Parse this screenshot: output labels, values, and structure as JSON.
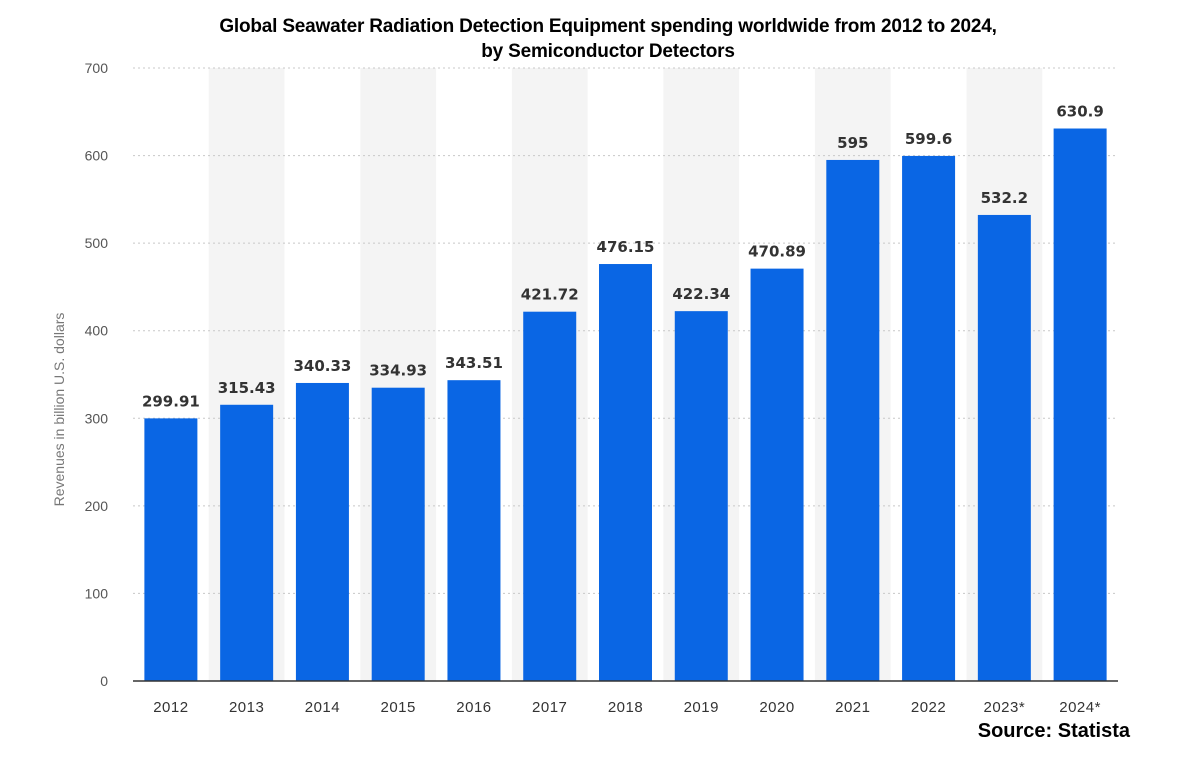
{
  "chart_data": {
    "type": "bar",
    "title_line1": "Global Seawater Radiation Detection Equipment spending worldwide from 2012 to 2024,",
    "title_line2": "by Semiconductor Detectors",
    "categories": [
      "2012",
      "2013",
      "2014",
      "2015",
      "2016",
      "2017",
      "2018",
      "2019",
      "2020",
      "2021",
      "2022",
      "2023*",
      "2024*"
    ],
    "values": [
      299.91,
      315.43,
      340.33,
      334.93,
      343.51,
      421.72,
      476.15,
      422.34,
      470.89,
      595,
      599.6,
      532.2,
      630.9
    ],
    "value_labels": [
      "299.91",
      "315.43",
      "340.33",
      "334.93",
      "343.51",
      "421.72",
      "476.15",
      "422.34",
      "470.89",
      "595",
      "599.6",
      "532.2",
      "630.9"
    ],
    "xlabel": "",
    "ylabel": "Revenues in billion U.S. dollars",
    "ylim": [
      0,
      700
    ],
    "yticks": [
      0,
      100,
      200,
      300,
      400,
      500,
      600,
      700
    ],
    "grid": true,
    "bar_color": "#0a66e4",
    "band_color": "#f4f4f4"
  },
  "source": "Source: Statista"
}
